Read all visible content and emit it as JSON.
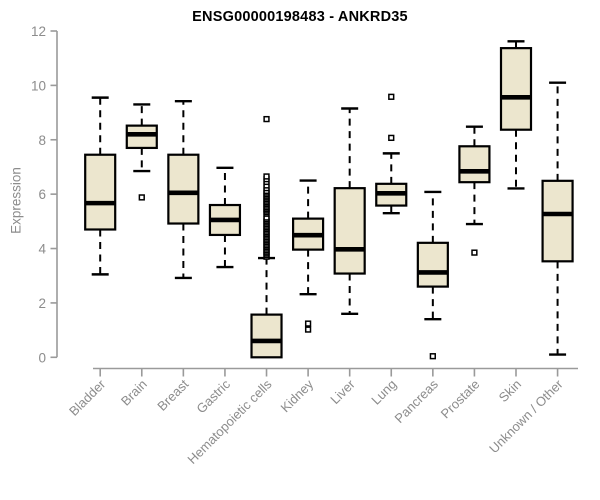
{
  "chart_data": {
    "type": "boxplot",
    "title": "ENSG00000198483 - ANKRD35",
    "ylabel": "Expression",
    "xlabel": "",
    "ylim": [
      0,
      12
    ],
    "yticks": [
      0,
      2,
      4,
      6,
      8,
      10,
      12
    ],
    "grid": false,
    "legend": "none",
    "colors": {
      "box_fill": "#ece6ce",
      "box_stroke": "#000000",
      "median": "#000000",
      "whisker": "#000000",
      "axis_line": "#9a9a9a",
      "tick_label": "#8c8c8c",
      "title": "#000000",
      "background": "#ffffff"
    },
    "categories": [
      "Bladder",
      "Brain",
      "Breast",
      "Gastric",
      "Hematopoietic cells",
      "Kidney",
      "Liver",
      "Lung",
      "Pancreas",
      "Prostate",
      "Skin",
      "Unknown / Other"
    ],
    "boxes": [
      {
        "category": "Bladder",
        "whisker_low": 3.05,
        "q1": 4.7,
        "median": 5.67,
        "q3": 7.45,
        "whisker_high": 9.55,
        "outliers": []
      },
      {
        "category": "Brain",
        "whisker_low": 6.85,
        "q1": 7.7,
        "median": 8.2,
        "q3": 8.52,
        "whisker_high": 9.3,
        "outliers": [
          5.88
        ]
      },
      {
        "category": "Breast",
        "whisker_low": 2.92,
        "q1": 4.92,
        "median": 6.05,
        "q3": 7.45,
        "whisker_high": 9.42,
        "outliers": []
      },
      {
        "category": "Gastric",
        "whisker_low": 3.32,
        "q1": 4.5,
        "median": 5.05,
        "q3": 5.6,
        "whisker_high": 6.97,
        "outliers": []
      },
      {
        "category": "Hematopoietic cells",
        "whisker_low": 0.0,
        "q1": 0.0,
        "median": 0.6,
        "q3": 1.57,
        "whisker_high": 3.65,
        "outliers": [
          3.7,
          3.76,
          3.82,
          3.88,
          3.94,
          4.0,
          4.06,
          4.12,
          4.18,
          4.24,
          4.3,
          4.36,
          4.42,
          4.48,
          4.54,
          4.6,
          4.66,
          4.72,
          4.78,
          4.84,
          4.9,
          4.96,
          5.02,
          5.08,
          5.14,
          5.28,
          5.34,
          5.4,
          5.46,
          5.52,
          5.58,
          5.64,
          5.7,
          5.76,
          5.82,
          5.88,
          5.94,
          6.0,
          6.06,
          6.12,
          6.22,
          6.32,
          6.45,
          6.55,
          6.65,
          8.76
        ]
      },
      {
        "category": "Kidney",
        "whisker_low": 2.32,
        "q1": 3.96,
        "median": 4.49,
        "q3": 5.1,
        "whisker_high": 6.5,
        "outliers": [
          1.02,
          1.24
        ]
      },
      {
        "category": "Liver",
        "whisker_low": 1.6,
        "q1": 3.08,
        "median": 3.97,
        "q3": 6.22,
        "whisker_high": 9.15,
        "outliers": []
      },
      {
        "category": "Lung",
        "whisker_low": 5.3,
        "q1": 5.58,
        "median": 6.03,
        "q3": 6.38,
        "whisker_high": 7.5,
        "outliers": [
          8.07,
          9.58
        ]
      },
      {
        "category": "Pancreas",
        "whisker_low": 1.4,
        "q1": 2.6,
        "median": 3.12,
        "q3": 4.21,
        "whisker_high": 6.08,
        "outliers": [
          0.04
        ]
      },
      {
        "category": "Prostate",
        "whisker_low": 4.9,
        "q1": 6.44,
        "median": 6.84,
        "q3": 7.76,
        "whisker_high": 8.48,
        "outliers": [
          3.85
        ]
      },
      {
        "category": "Skin",
        "whisker_low": 6.21,
        "q1": 8.37,
        "median": 9.56,
        "q3": 11.37,
        "whisker_high": 11.62,
        "outliers": []
      },
      {
        "category": "Unknown / Other",
        "whisker_low": 0.1,
        "q1": 3.53,
        "median": 5.27,
        "q3": 6.49,
        "whisker_high": 10.1,
        "outliers": []
      }
    ]
  }
}
